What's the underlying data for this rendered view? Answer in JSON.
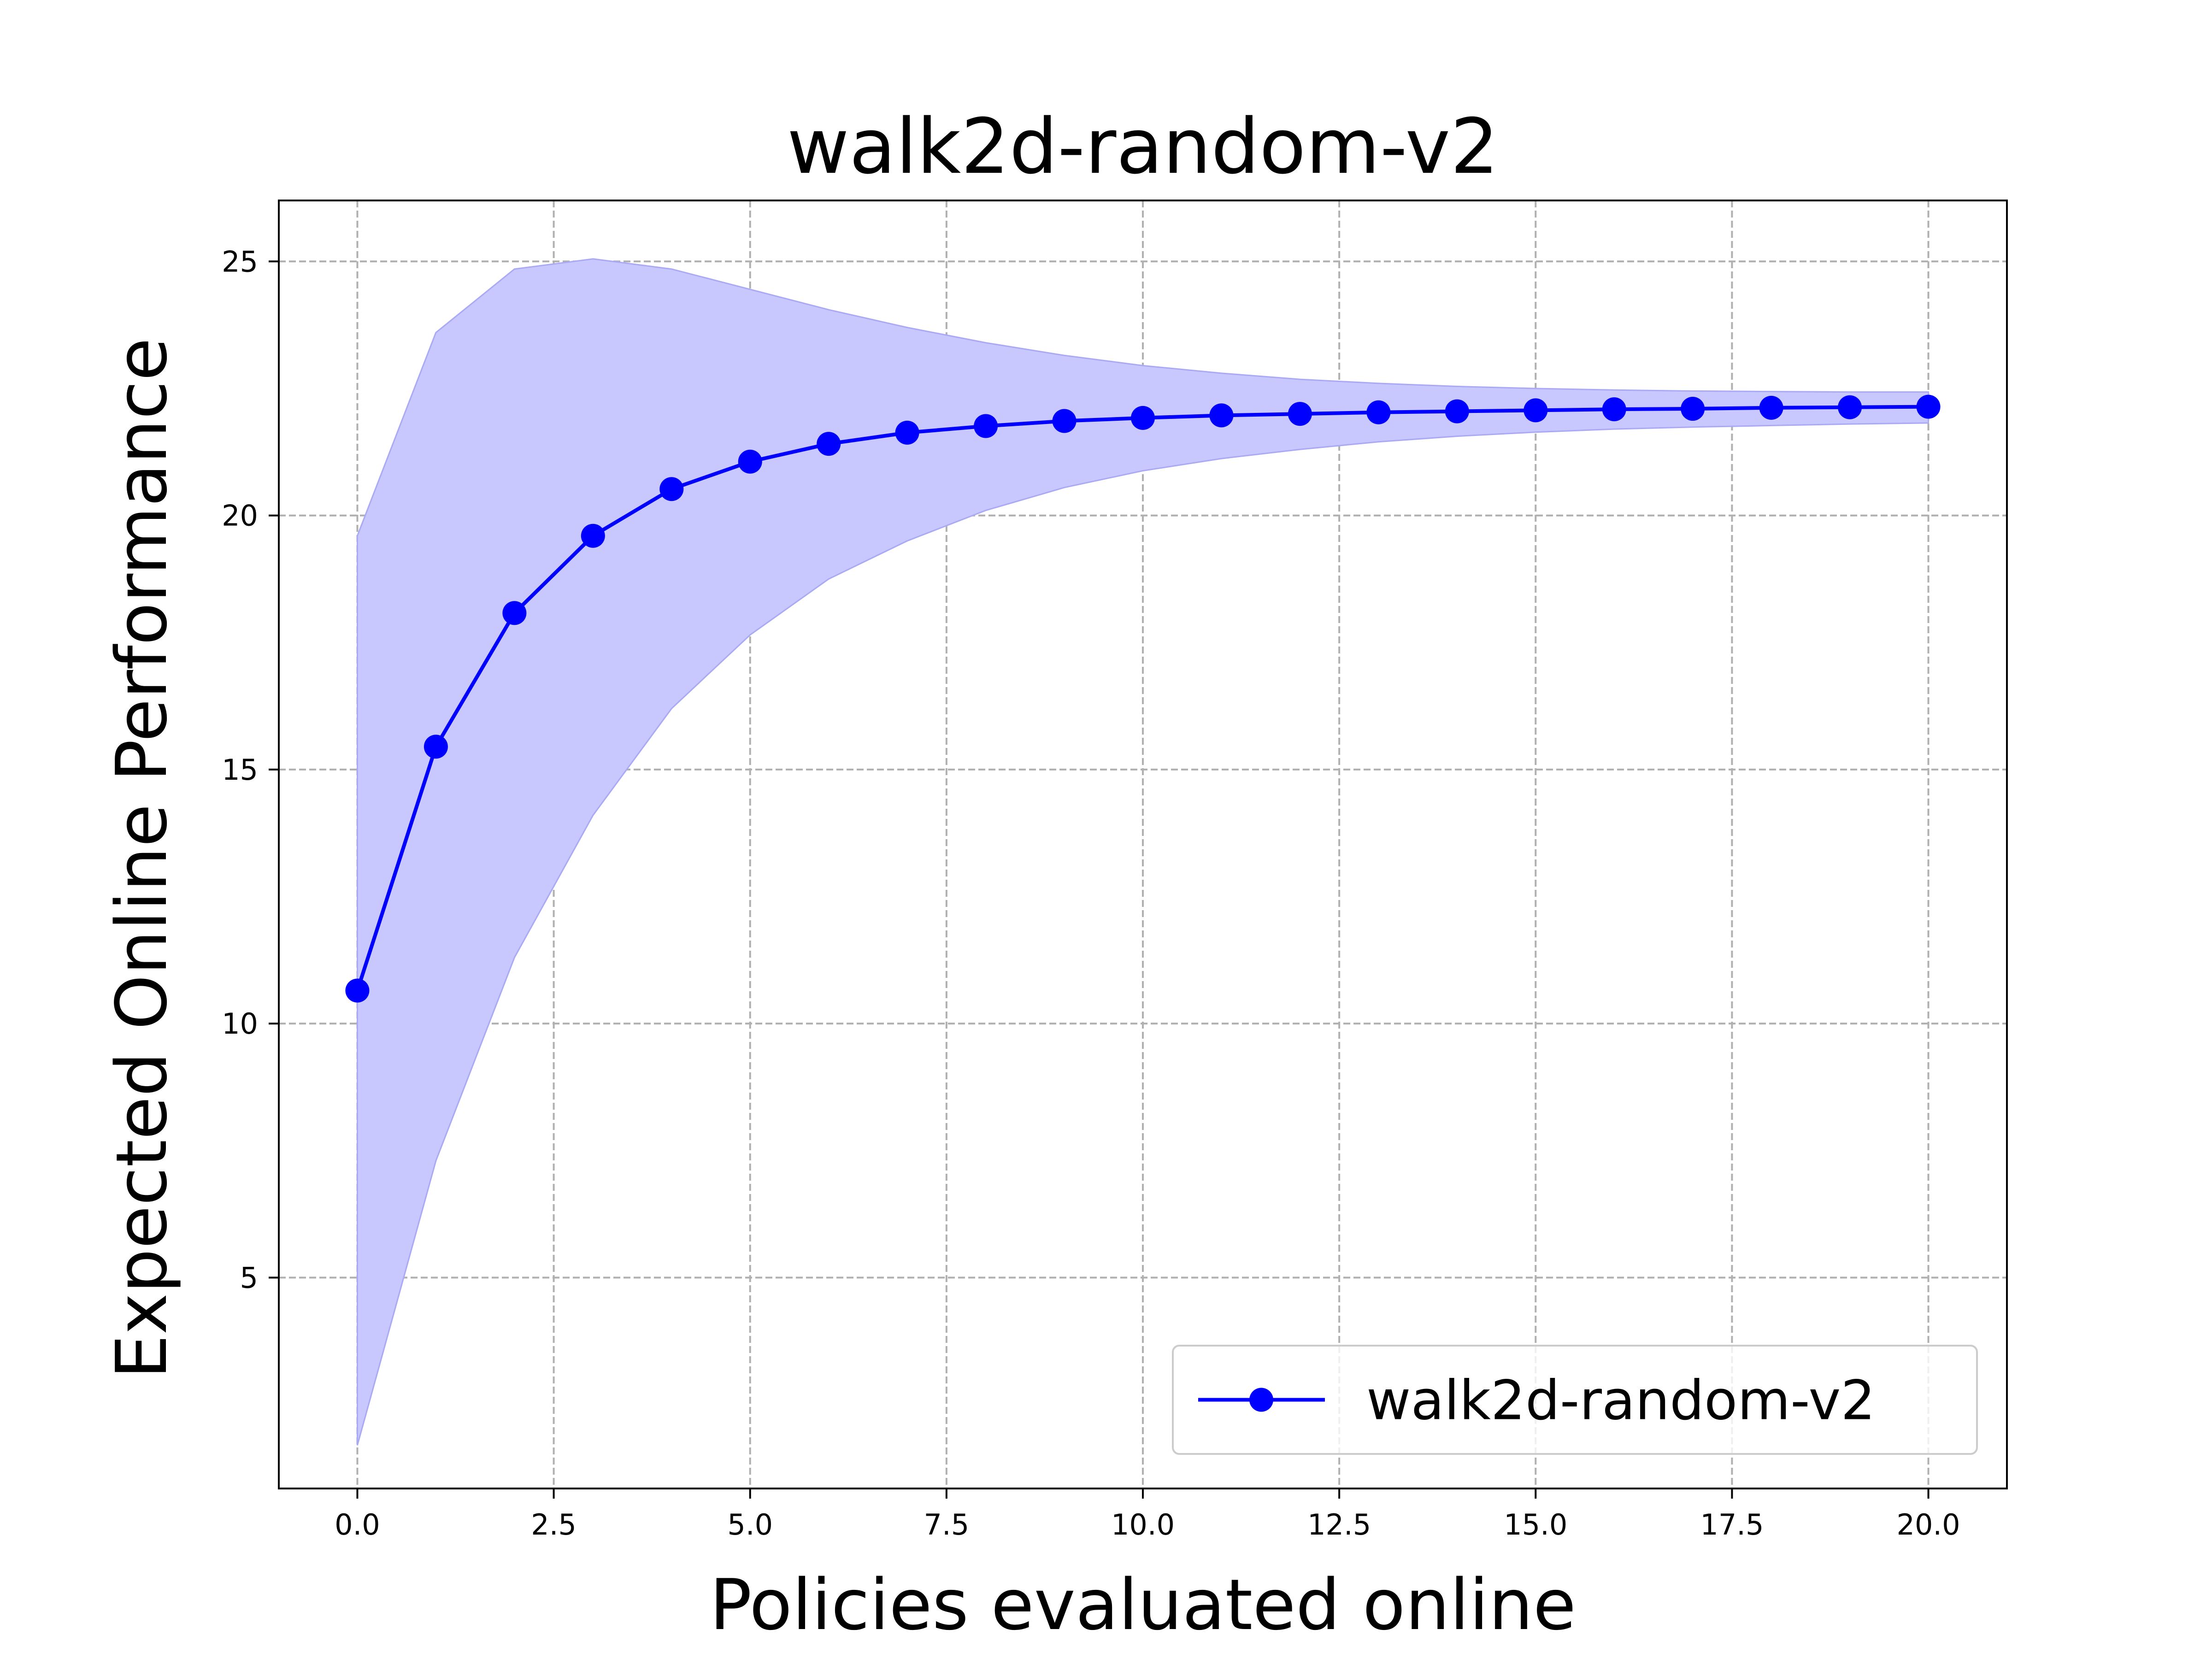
{
  "chart_data": {
    "type": "line",
    "title": "walk2d-random-v2",
    "xlabel": "Policies evaluated online",
    "ylabel": "Expected Online Performance",
    "xlim": [
      -1.0,
      21.0
    ],
    "ylim": [
      0.85,
      26.2
    ],
    "xticks": [
      0.0,
      2.5,
      5.0,
      7.5,
      10.0,
      12.5,
      15.0,
      17.5,
      20.0
    ],
    "xtick_labels": [
      "0.0",
      "2.5",
      "5.0",
      "7.5",
      "10.0",
      "12.5",
      "15.0",
      "17.5",
      "20.0"
    ],
    "yticks": [
      5,
      10,
      15,
      20,
      25
    ],
    "ytick_labels": [
      "5",
      "10",
      "15",
      "20",
      "25"
    ],
    "grid": true,
    "legend": {
      "position": "lower-right"
    },
    "series": [
      {
        "name": "walk2d-random-v2",
        "color": "#0000ff",
        "band_color": "#c8c8ff",
        "x": [
          0,
          1,
          2,
          3,
          4,
          5,
          6,
          7,
          8,
          9,
          10,
          11,
          12,
          13,
          14,
          15,
          16,
          17,
          18,
          19,
          20
        ],
        "values": [
          10.65,
          15.45,
          18.08,
          19.6,
          20.52,
          21.06,
          21.41,
          21.63,
          21.76,
          21.86,
          21.92,
          21.97,
          22.0,
          22.03,
          22.05,
          22.07,
          22.09,
          22.1,
          22.12,
          22.13,
          22.14
        ],
        "upper": [
          19.6,
          23.6,
          24.85,
          25.05,
          24.85,
          24.45,
          24.05,
          23.7,
          23.4,
          23.15,
          22.95,
          22.8,
          22.68,
          22.6,
          22.54,
          22.5,
          22.47,
          22.45,
          22.44,
          22.43,
          22.43
        ],
        "lower": [
          1.7,
          7.3,
          11.3,
          14.1,
          16.2,
          17.65,
          18.75,
          19.5,
          20.1,
          20.55,
          20.88,
          21.12,
          21.3,
          21.45,
          21.56,
          21.64,
          21.7,
          21.74,
          21.77,
          21.8,
          21.82
        ]
      }
    ]
  }
}
